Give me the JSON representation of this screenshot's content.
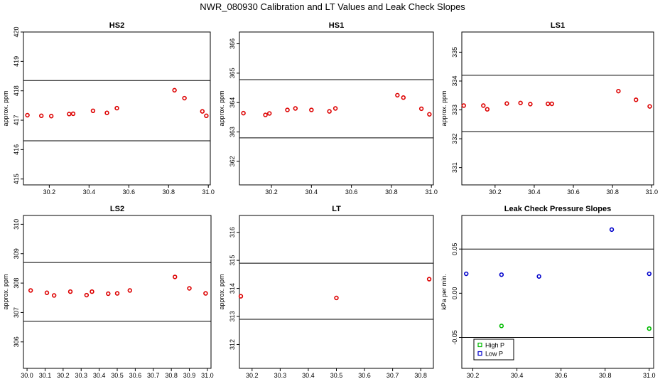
{
  "figure_title": "NWR_080930  Calibration and LT Values and Leak Check Slopes",
  "chart_data": [
    {
      "type": "scatter",
      "title": "HS2",
      "ylabel": "approx. ppm",
      "xlim": [
        30.07,
        31.01
      ],
      "ylim": [
        414.8,
        420.0
      ],
      "xticks": [
        "30.2",
        "30.4",
        "30.6",
        "30.8",
        "31.0"
      ],
      "yticks": [
        "415",
        "416",
        "417",
        "418",
        "419",
        "420"
      ],
      "hlines": [
        418.35,
        416.3
      ],
      "series": [
        {
          "color": "#dd0000",
          "points": [
            [
              30.09,
              417.17
            ],
            [
              30.16,
              417.15
            ],
            [
              30.21,
              417.14
            ],
            [
              30.3,
              417.21
            ],
            [
              30.32,
              417.22
            ],
            [
              30.42,
              417.32
            ],
            [
              30.49,
              417.25
            ],
            [
              30.54,
              417.41
            ],
            [
              30.83,
              418.02
            ],
            [
              30.88,
              417.75
            ],
            [
              30.97,
              417.3
            ],
            [
              30.99,
              417.15
            ]
          ]
        }
      ]
    },
    {
      "type": "scatter",
      "title": "HS1",
      "ylabel": "approx. ppm",
      "xlim": [
        30.04,
        31.01
      ],
      "ylim": [
        361.2,
        366.4
      ],
      "xticks": [
        "30.2",
        "30.4",
        "30.6",
        "30.8",
        "31.0"
      ],
      "yticks": [
        "362",
        "363",
        "364",
        "365",
        "366"
      ],
      "hlines": [
        364.78,
        362.8
      ],
      "series": [
        {
          "color": "#dd0000",
          "points": [
            [
              30.06,
              363.64
            ],
            [
              30.17,
              363.58
            ],
            [
              30.19,
              363.63
            ],
            [
              30.28,
              363.75
            ],
            [
              30.32,
              363.8
            ],
            [
              30.4,
              363.75
            ],
            [
              30.49,
              363.7
            ],
            [
              30.52,
              363.8
            ],
            [
              30.83,
              364.25
            ],
            [
              30.86,
              364.17
            ],
            [
              30.95,
              363.79
            ],
            [
              30.99,
              363.6
            ]
          ]
        }
      ]
    },
    {
      "type": "scatter",
      "title": "LS1",
      "ylabel": "approx. ppm",
      "xlim": [
        30.03,
        31.01
      ],
      "ylim": [
        330.4,
        335.7
      ],
      "xticks": [
        "30.2",
        "30.4",
        "30.6",
        "30.8",
        "31.0"
      ],
      "yticks": [
        "331",
        "332",
        "333",
        "334",
        "335"
      ],
      "hlines": [
        334.2,
        332.25
      ],
      "series": [
        {
          "color": "#dd0000",
          "points": [
            [
              30.04,
              333.15
            ],
            [
              30.14,
              333.15
            ],
            [
              30.16,
              333.02
            ],
            [
              30.26,
              333.22
            ],
            [
              30.33,
              333.24
            ],
            [
              30.38,
              333.2
            ],
            [
              30.47,
              333.21
            ],
            [
              30.49,
              333.21
            ],
            [
              30.83,
              333.65
            ],
            [
              30.92,
              333.35
            ],
            [
              30.99,
              333.12
            ]
          ]
        }
      ]
    },
    {
      "type": "scatter",
      "title": "LS2",
      "ylabel": "approx. ppm",
      "xlim": [
        29.98,
        31.02
      ],
      "ylim": [
        305.1,
        310.3
      ],
      "xticks": [
        "30.0",
        "30.1",
        "30.2",
        "30.3",
        "30.4",
        "30.5",
        "30.6",
        "30.7",
        "30.8",
        "30.9",
        "31.0"
      ],
      "yticks": [
        "306",
        "307",
        "308",
        "309",
        "310"
      ],
      "hlines": [
        308.7,
        306.7
      ],
      "series": [
        {
          "color": "#dd0000",
          "points": [
            [
              30.02,
              307.75
            ],
            [
              30.11,
              307.67
            ],
            [
              30.15,
              307.58
            ],
            [
              30.24,
              307.71
            ],
            [
              30.33,
              307.59
            ],
            [
              30.36,
              307.71
            ],
            [
              30.45,
              307.64
            ],
            [
              30.5,
              307.65
            ],
            [
              30.57,
              307.75
            ],
            [
              30.82,
              308.21
            ],
            [
              30.9,
              307.82
            ],
            [
              30.99,
              307.65
            ]
          ]
        }
      ]
    },
    {
      "type": "scatter",
      "title": "LT",
      "ylabel": "approx. ppm",
      "xlim": [
        30.155,
        30.845
      ],
      "ylim": [
        311.15,
        316.6
      ],
      "xticks": [
        "30.2",
        "30.3",
        "30.4",
        "30.5",
        "30.6",
        "30.7",
        "30.8"
      ],
      "yticks": [
        "312",
        "313",
        "314",
        "315",
        "316"
      ],
      "hlines": [
        314.9,
        312.9
      ],
      "series": [
        {
          "color": "#dd0000",
          "points": [
            [
              30.16,
              313.72
            ],
            [
              30.5,
              313.66
            ],
            [
              30.83,
              314.33
            ]
          ]
        }
      ]
    },
    {
      "type": "scatter",
      "title": "Leak Check Pressure Slopes",
      "ylabel": "kPa per min.",
      "xlim": [
        30.15,
        31.02
      ],
      "ylim": [
        -0.085,
        0.088
      ],
      "xticks": [
        "30.2",
        "30.4",
        "30.6",
        "30.8",
        "31.0"
      ],
      "yticks": [
        "-0.05",
        "0.00",
        "0.05"
      ],
      "hlines": [
        0.05,
        -0.05
      ],
      "legend": {
        "position": "bottom-left",
        "entries": [
          {
            "label": "High P",
            "color": "#00bb00"
          },
          {
            "label": "Low P",
            "color": "#0000cc"
          }
        ]
      },
      "series": [
        {
          "name": "High P",
          "color": "#00bb00",
          "points": [
            [
              30.33,
              -0.037
            ],
            [
              31.0,
              -0.04
            ]
          ]
        },
        {
          "name": "Low P",
          "color": "#0000cc",
          "points": [
            [
              30.17,
              0.022
            ],
            [
              30.33,
              0.021
            ],
            [
              30.5,
              0.019
            ],
            [
              30.83,
              0.072
            ],
            [
              31.0,
              0.022
            ]
          ]
        }
      ]
    }
  ]
}
